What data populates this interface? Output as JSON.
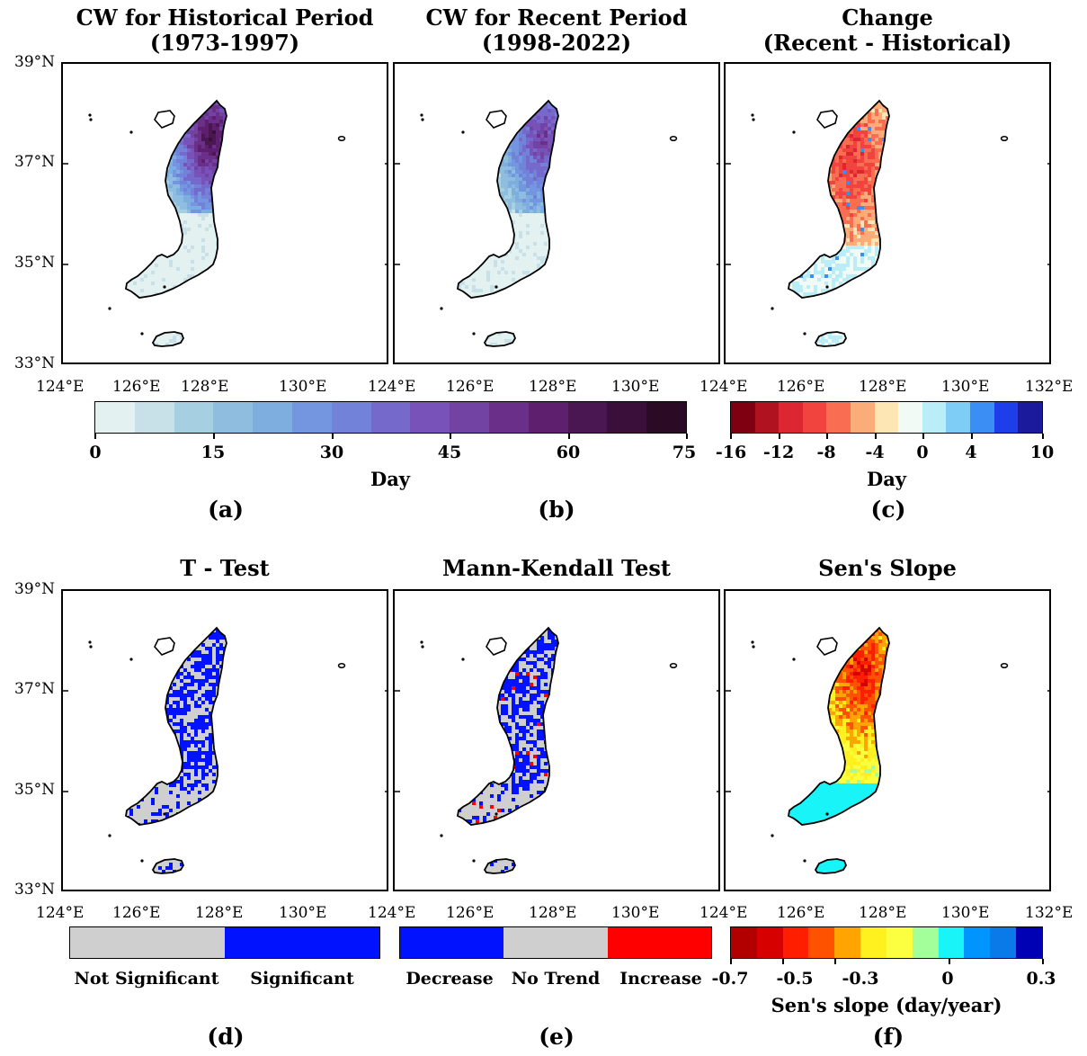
{
  "titles": {
    "a": [
      "CW for Historical Period",
      "(1973-1997)"
    ],
    "b": [
      "CW for Recent Period",
      "(1998-2022)"
    ],
    "c": [
      "Change",
      "(Recent - Historical)"
    ],
    "d": "T - Test",
    "e": "Mann-Kendall Test",
    "f": "Sen's Slope"
  },
  "lat_labels": [
    "39°N",
    "37°N",
    "35°N",
    "33°N"
  ],
  "lon_labels_top": [
    "124°E",
    "126°E",
    "128°E",
    "130°E",
    "124°E",
    "126°E",
    "128°E",
    "130°E",
    "124°E",
    "126°E",
    "128°E",
    "130°E",
    "132°E"
  ],
  "lon_labels_bottom": [
    "124°E",
    "126°E",
    "128°E",
    "130°E",
    "124°E",
    "126°E",
    "128°E",
    "130°E",
    "124°E",
    "126°E",
    "128°E",
    "130°E",
    "132°E"
  ],
  "colorbar_cw": {
    "ticks": [
      "0",
      "15",
      "30",
      "45",
      "60",
      "75"
    ],
    "label": "Day",
    "colors": [
      "#e3f1f0",
      "#c8e1e8",
      "#a6cfe2",
      "#8fbde0",
      "#7eaee0",
      "#7496e0",
      "#7282d8",
      "#7569cc",
      "#7852b8",
      "#7243a3",
      "#692f89",
      "#5e1f6e",
      "#4a1753",
      "#3a0f3a",
      "#2a0a24"
    ]
  },
  "colorbar_change": {
    "ticks": [
      "-16",
      "-12",
      "-8",
      "-4",
      "0",
      "4",
      "10"
    ],
    "label": "Day",
    "colors": [
      "#7f0010",
      "#b0121f",
      "#dc2632",
      "#f2443e",
      "#f96e52",
      "#fbac78",
      "#fde5b4",
      "#f1faf5",
      "#b9edf8",
      "#7dcdf6",
      "#3b8ef3",
      "#1d3ee8",
      "#1b1a9c"
    ]
  },
  "colorbar_ttest": {
    "labels": [
      "Not Significant",
      "Significant"
    ],
    "colors": [
      "#cfcfcf",
      "#0012ff"
    ]
  },
  "colorbar_mk": {
    "labels": [
      "Decrease",
      "No Trend",
      "Increase"
    ],
    "colors": [
      "#0012ff",
      "#cfcfcf",
      "#ff0000"
    ]
  },
  "colorbar_sen": {
    "ticks": [
      "-0.7",
      "-0.5",
      "-0.3",
      "0",
      "0.3"
    ],
    "label": "Sen's slope (day/year)",
    "colors": [
      "#b20000",
      "#d60000",
      "#ff1e00",
      "#ff5200",
      "#ffa400",
      "#fff020",
      "#fbff40",
      "#a3ff9a",
      "#18f4f7",
      "#0094ff",
      "#0a7ae8",
      "#0000b4"
    ]
  },
  "panel_letters": [
    "(a)",
    "(b)",
    "(c)",
    "(d)",
    "(e)",
    "(f)"
  ]
}
